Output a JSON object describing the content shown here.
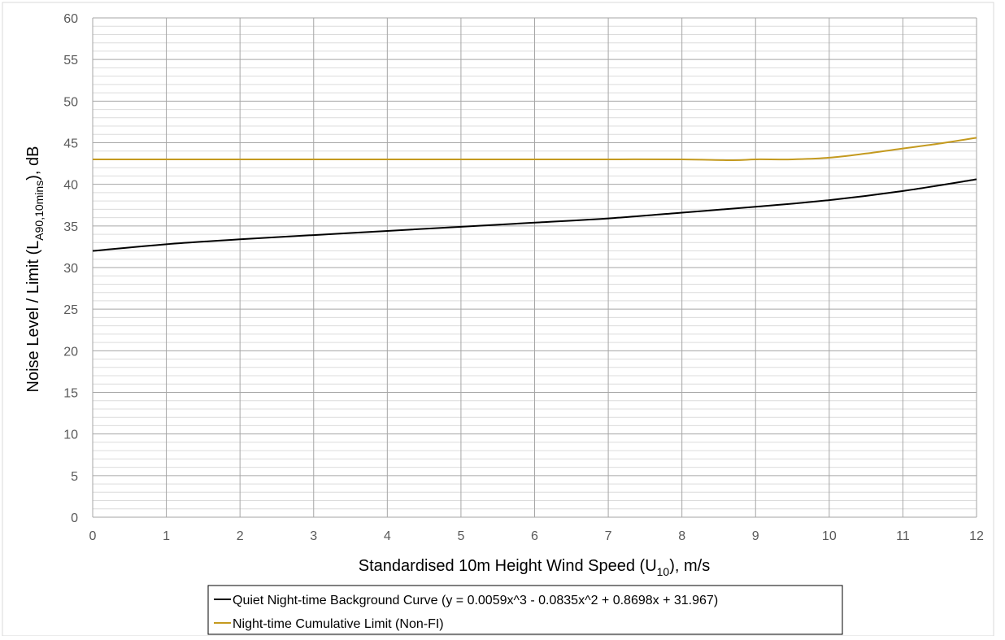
{
  "chart_data": {
    "type": "line",
    "xlabel": {
      "main": "Standardised 10m Height Wind Speed (U",
      "sub": "10",
      "post": "), m/s"
    },
    "ylabel": {
      "main": "Noise Level / Limit (L",
      "sub": "A90,10mins",
      "post": "), dB"
    },
    "xlim": [
      0,
      12
    ],
    "ylim": [
      0,
      60
    ],
    "x_ticks": [
      0,
      1,
      2,
      3,
      4,
      5,
      6,
      7,
      8,
      9,
      10,
      11,
      12
    ],
    "y_ticks": [
      0,
      5,
      10,
      15,
      20,
      25,
      30,
      35,
      40,
      45,
      50,
      55,
      60
    ],
    "grid": {
      "major_x": true,
      "major_y": true,
      "minor_y": true
    },
    "legend_position": "bottom-center",
    "series": [
      {
        "name": "Quiet Night-time Background Curve (y = 0.0059x^3 - 0.0835x^2 + 0.8698x + 31.967)",
        "color": "#000000",
        "x": [
          0,
          1,
          2,
          3,
          4,
          5,
          6,
          7,
          8,
          9,
          10,
          11,
          12
        ],
        "y": [
          32.0,
          32.8,
          33.4,
          33.9,
          34.4,
          34.9,
          35.4,
          35.9,
          36.6,
          37.3,
          38.1,
          39.2,
          40.6
        ]
      },
      {
        "name": "Night-time Cumulative Limit (Non-FI)",
        "color": "#C49A1F",
        "x": [
          0,
          1,
          2,
          3,
          4,
          5,
          6,
          7,
          8,
          8.7,
          9,
          9.5,
          10,
          10.5,
          11,
          11.5,
          12
        ],
        "y": [
          43.0,
          43.0,
          43.0,
          43.0,
          43.0,
          43.0,
          43.0,
          43.0,
          43.0,
          42.9,
          43.0,
          43.0,
          43.2,
          43.7,
          44.3,
          44.9,
          45.6
        ]
      }
    ]
  }
}
